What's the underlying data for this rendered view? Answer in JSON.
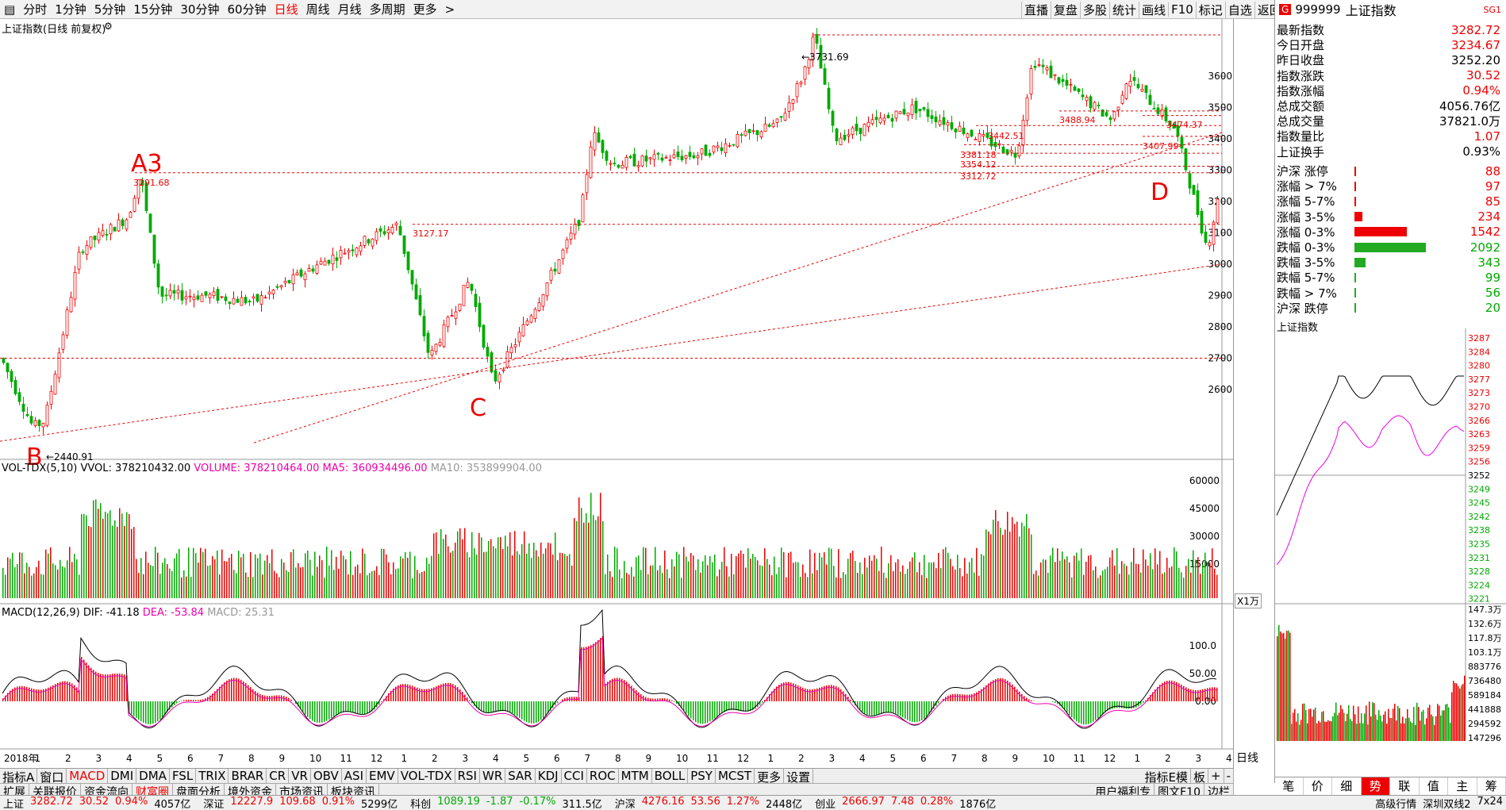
{
  "toolbar": {
    "periods": [
      "分时",
      "1分钟",
      "5分钟",
      "15分钟",
      "30分钟",
      "60分钟",
      "日线",
      "周线",
      "月线",
      "多周期",
      "更多"
    ],
    "active": "日线",
    "right_tools": [
      "直播",
      "复盘",
      "多股",
      "统计",
      "画线",
      "F10",
      "标记",
      "自选",
      "返回"
    ]
  },
  "chart_title": "上证指数(日线 前复权)",
  "annotations": {
    "A3": "A3",
    "B": "B",
    "C": "C",
    "D": "D",
    "peak": "3731.69",
    "low": "2440.91",
    "a3_price": "3291.68",
    "p3127": "3127.17",
    "p3442": "3442.51",
    "p3381": "3381.18",
    "p3354": "3354.12",
    "p3312": "3312.72",
    "p3488": "3488.94",
    "p3474": "3474.37",
    "p3407": "3407.99"
  },
  "price_axis": [
    "3600",
    "3500",
    "3400",
    "3300",
    "3200",
    "3100",
    "3000",
    "2900",
    "2800",
    "2700",
    "2600"
  ],
  "vol_title": {
    "name": "VOL-TDX(5,10)",
    "vvol": "VVOL: 378210432.00",
    "volume": "VOLUME: 378210464.00",
    "ma5": "MA5: 360934496.00",
    "ma10": "MA10: 353899904.00"
  },
  "vol_axis": [
    "60000",
    "45000",
    "30000",
    "15000"
  ],
  "vol_unit": "X1万",
  "macd_title": {
    "name": "MACD(12,26,9)",
    "dif": "DIF: -41.18",
    "dea": "DEA: -53.84",
    "macd": "MACD: 25.31"
  },
  "macd_axis": [
    "100.0",
    "50.00",
    "0.00"
  ],
  "date_axis": [
    "2018年",
    "1",
    "2",
    "3",
    "4",
    "5",
    "6",
    "7",
    "8",
    "9",
    "10",
    "11",
    "12",
    "1",
    "2",
    "3",
    "4",
    "5",
    "6",
    "7",
    "8",
    "9",
    "10",
    "11",
    "12",
    "1",
    "2",
    "3",
    "4",
    "5",
    "6",
    "7",
    "8",
    "9",
    "10",
    "11",
    "12",
    "1",
    "2",
    "3",
    "4"
  ],
  "period_tag": "日线",
  "indicator_tabs": [
    "指标A",
    "窗口",
    "MACD",
    "DMI",
    "DMA",
    "FSL",
    "TRIX",
    "BRAR",
    "CR",
    "VR",
    "OBV",
    "ASI",
    "EMV",
    "VOL-TDX",
    "RSI",
    "WR",
    "SAR",
    "KDJ",
    "CCI",
    "ROC",
    "MTM",
    "BOLL",
    "PSY",
    "MCST",
    "更多",
    "设置"
  ],
  "active_indicator": "MACD",
  "indicator_right": [
    "指标E模",
    "板",
    "+",
    "-"
  ],
  "sub_tabs": [
    "扩展",
    "关联报价",
    "资金流向",
    "财富圈",
    "盘面分析",
    "境外资金",
    "市场资讯",
    "板块资讯"
  ],
  "active_sub": "财富圈",
  "sub_right": [
    "用户福利专",
    "图文F10",
    "边栏"
  ],
  "quote": {
    "badge": "G",
    "code": "999999",
    "name": "上证指数",
    "sg": "SG1",
    "rows": [
      {
        "k": "最新指数",
        "v": "3282.72",
        "c": "red"
      },
      {
        "k": "今日开盘",
        "v": "3234.67",
        "c": "red"
      },
      {
        "k": "昨日收盘",
        "v": "3252.20",
        "c": ""
      },
      {
        "k": "指数涨跌",
        "v": "30.52",
        "c": "red"
      },
      {
        "k": "指数涨幅",
        "v": "0.94%",
        "c": "red"
      },
      {
        "k": "总成交额",
        "v": "4056.76亿",
        "c": ""
      },
      {
        "k": "总成交量",
        "v": "37821.0万",
        "c": ""
      },
      {
        "k": "指数量比",
        "v": "1.07",
        "c": "red"
      },
      {
        "k": "上证换手",
        "v": "0.93%",
        "c": ""
      }
    ],
    "breadth": [
      {
        "k": "沪深 涨停",
        "v": "88",
        "c": "red",
        "w": 0.02
      },
      {
        "k": "涨幅 > 7%",
        "v": "97",
        "c": "red",
        "w": 0.02
      },
      {
        "k": "涨幅 5-7%",
        "v": "85",
        "c": "red",
        "w": 0.02
      },
      {
        "k": "涨幅 3-5%",
        "v": "234",
        "c": "red",
        "w": 0.08
      },
      {
        "k": "涨幅 0-3%",
        "v": "1542",
        "c": "red",
        "w": 0.55
      },
      {
        "k": "跌幅 0-3%",
        "v": "2092",
        "c": "green",
        "w": 0.75
      },
      {
        "k": "跌幅 3-5%",
        "v": "343",
        "c": "green",
        "w": 0.12
      },
      {
        "k": "跌幅 5-7%",
        "v": "99",
        "c": "green",
        "w": 0.02
      },
      {
        "k": "跌幅 > 7%",
        "v": "56",
        "c": "green",
        "w": 0.02
      },
      {
        "k": "沪深 跌停",
        "v": "20",
        "c": "green",
        "w": 0.01
      }
    ]
  },
  "intraday": {
    "title": "上证指数",
    "price_axis": [
      "3287",
      "3284",
      "3280",
      "3277",
      "3273",
      "3270",
      "3266",
      "3263",
      "3259",
      "3256",
      "3252",
      "3249",
      "3245",
      "3242",
      "3238",
      "3235",
      "3231",
      "3228",
      "3224",
      "3221"
    ],
    "vol_axis": [
      "147.3万",
      "132.6万",
      "117.8万",
      "103.1万",
      "883776",
      "736480",
      "589184",
      "441888",
      "294592",
      "147296"
    ]
  },
  "right_tabs": [
    "笔",
    "价",
    "细",
    "势",
    "联",
    "值",
    "主",
    "筹"
  ],
  "active_right_tab": "势",
  "status": [
    {
      "k": "上证",
      "v": "3282.72",
      "d": "30.52",
      "p": "0.94%",
      "a": "4057亿",
      "c": "red"
    },
    {
      "k": "深证",
      "v": "12227.9",
      "d": "109.68",
      "p": "0.91%",
      "a": "5299亿",
      "c": "red"
    },
    {
      "k": "科创",
      "v": "1089.19",
      "d": "-1.87",
      "p": "-0.17%",
      "a": "311.5亿",
      "c": "green"
    },
    {
      "k": "沪深",
      "v": "4276.16",
      "d": "53.56",
      "p": "1.27%",
      "a": "2448亿",
      "c": "red"
    },
    {
      "k": "创业",
      "v": "2666.97",
      "d": "7.48",
      "p": "0.28%",
      "a": "1876亿",
      "c": "red"
    }
  ],
  "status_right": [
    "高级行情",
    "深圳双线2",
    "7x24"
  ]
}
